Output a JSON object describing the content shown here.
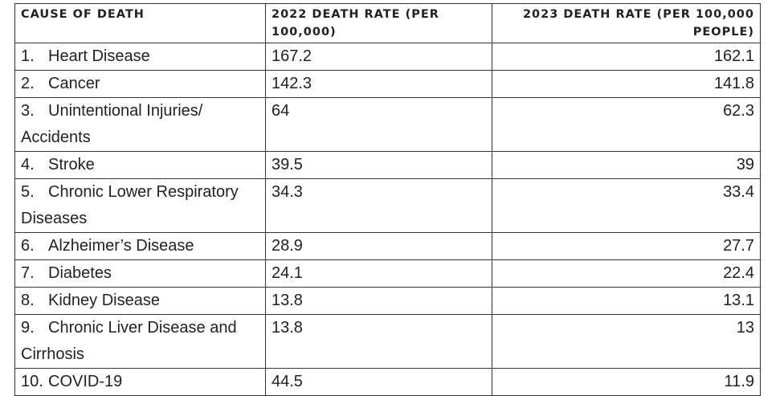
{
  "table": {
    "headers": {
      "cause": "CAUSE OF DEATH",
      "rate_2022": "2022 DEATH RATE (PER 100,000)",
      "rate_2023": "2023 DEATH RATE (PER 100,000 PEOPLE)"
    },
    "rows": [
      {
        "index": "1.",
        "cause": "Heart Disease",
        "rate_2022": "167.2",
        "rate_2023": "162.1"
      },
      {
        "index": "2.",
        "cause": "Cancer",
        "rate_2022": "142.3",
        "rate_2023": "141.8"
      },
      {
        "index": "3.",
        "cause": "Unintentional Injuries/ Accidents",
        "rate_2022": "64",
        "rate_2023": "62.3"
      },
      {
        "index": "4.",
        "cause": "Stroke",
        "rate_2022": "39.5",
        "rate_2023": "39"
      },
      {
        "index": "5.",
        "cause": "Chronic Lower Respiratory Diseases",
        "rate_2022": "34.3",
        "rate_2023": "33.4"
      },
      {
        "index": "6.",
        "cause": "Alzheimer’s Disease",
        "rate_2022": "28.9",
        "rate_2023": "27.7"
      },
      {
        "index": "7.",
        "cause": "Diabetes",
        "rate_2022": "24.1",
        "rate_2023": "22.4"
      },
      {
        "index": "8.",
        "cause": "Kidney Disease",
        "rate_2022": "13.8",
        "rate_2023": "13.1"
      },
      {
        "index": "9.",
        "cause": "Chronic Liver Disease and Cirrhosis",
        "rate_2022": "13.8",
        "rate_2023": "13"
      },
      {
        "index": "10.",
        "cause": "COVID-19",
        "rate_2022": "44.5",
        "rate_2023": "11.9"
      }
    ]
  }
}
